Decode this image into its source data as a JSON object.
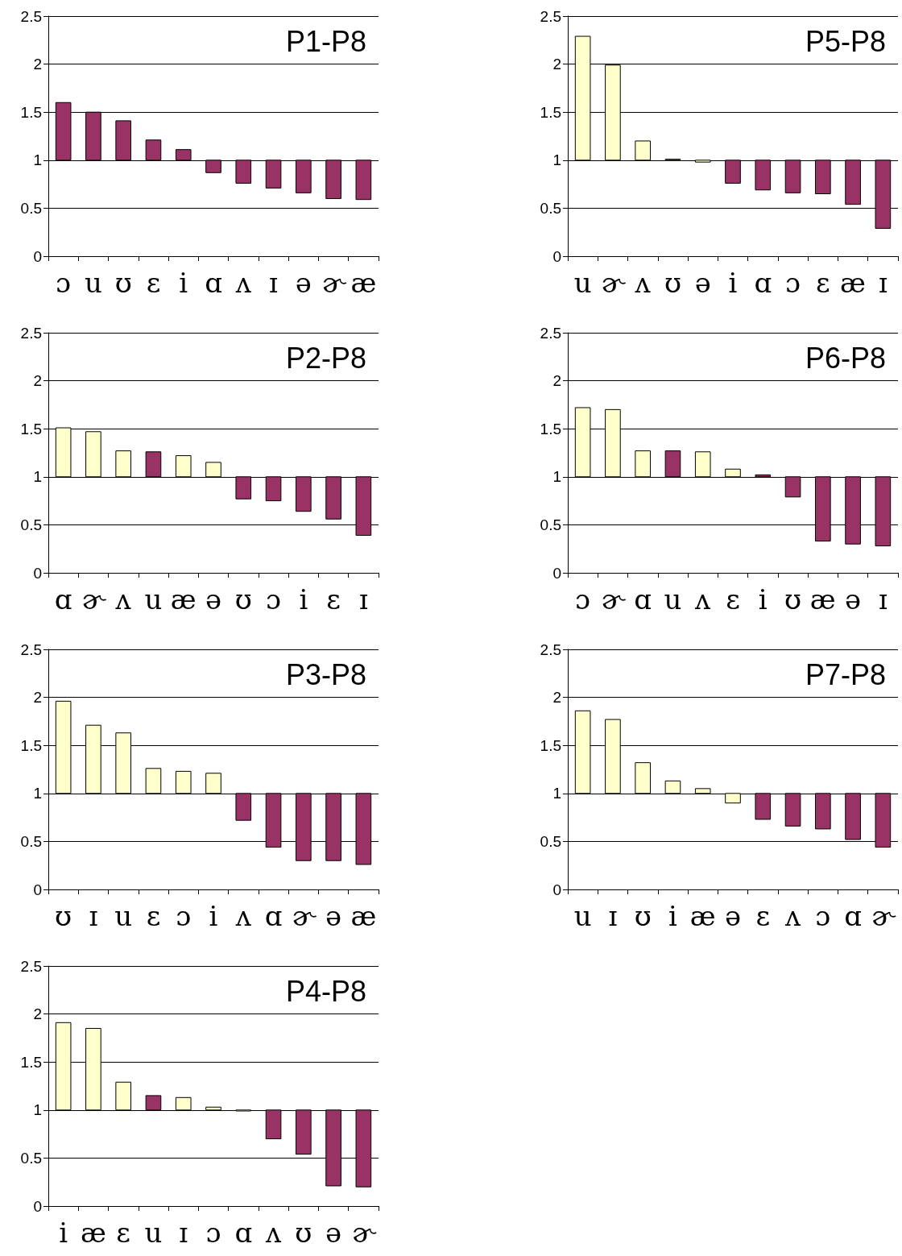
{
  "chart_data": [
    {
      "type": "bar",
      "title": "P1-P8",
      "categories": [
        "ɔ",
        "u",
        "ʊ",
        "ɛ",
        "i",
        "ɑ",
        "ʌ",
        "ɪ",
        "ə",
        "ɚ",
        "æ"
      ],
      "base": [
        1,
        1,
        1,
        1,
        1,
        1,
        1,
        1,
        1,
        1,
        1
      ],
      "values": [
        0.6,
        0.5,
        0.41,
        0.21,
        0.11,
        -0.13,
        -0.24,
        -0.29,
        -0.34,
        -0.4,
        -0.41
      ],
      "colors": [
        "#993366",
        "#993366",
        "#993366",
        "#993366",
        "#993366",
        "#993366",
        "#993366",
        "#993366",
        "#993366",
        "#993366",
        "#993366"
      ],
      "ylim": [
        0,
        2.5
      ],
      "yticks": [
        0,
        0.5,
        1,
        1.5,
        2,
        2.5
      ],
      "grid": "y"
    },
    {
      "type": "bar",
      "title": "P5-P8",
      "categories": [
        "u",
        "ɚ",
        "ʌ",
        "ʊ",
        "ə",
        "i",
        "ɑ",
        "ɔ",
        "ɛ",
        "æ",
        "ɪ"
      ],
      "base": [
        1,
        1,
        1,
        1,
        1,
        1,
        1,
        1,
        1,
        1,
        1
      ],
      "values": [
        1.29,
        0.99,
        0.2,
        0.01,
        -0.02,
        -0.24,
        -0.31,
        -0.34,
        -0.35,
        -0.46,
        -0.71
      ],
      "colors": [
        "#ffffcc",
        "#ffffcc",
        "#ffffcc",
        "#ffffcc",
        "#ffffcc",
        "#993366",
        "#993366",
        "#993366",
        "#993366",
        "#993366",
        "#993366"
      ],
      "ylim": [
        0,
        2.5
      ],
      "yticks": [
        0,
        0.5,
        1,
        1.5,
        2,
        2.5
      ],
      "grid": "y"
    },
    {
      "type": "bar",
      "title": "P2-P8",
      "categories": [
        "ɑ",
        "ɚ",
        "ʌ",
        "u",
        "æ",
        "ə",
        "ʊ",
        "ɔ",
        "i",
        "ɛ",
        "ɪ"
      ],
      "base": [
        1,
        1,
        1,
        1,
        1,
        1,
        1,
        1,
        1,
        1,
        1
      ],
      "values": [
        0.51,
        0.47,
        0.27,
        0.26,
        0.22,
        0.15,
        -0.23,
        -0.25,
        -0.36,
        -0.44,
        -0.61
      ],
      "colors": [
        "#ffffcc",
        "#ffffcc",
        "#ffffcc",
        "#993366",
        "#ffffcc",
        "#ffffcc",
        "#993366",
        "#993366",
        "#993366",
        "#993366",
        "#993366"
      ],
      "ylim": [
        0,
        2.5
      ],
      "yticks": [
        0,
        0.5,
        1,
        1.5,
        2,
        2.5
      ],
      "grid": "y"
    },
    {
      "type": "bar",
      "title": "P6-P8",
      "categories": [
        "ɔ",
        "ɚ",
        "ɑ",
        "u",
        "ʌ",
        "ɛ",
        "i",
        "ʊ",
        "æ",
        "ə",
        "ɪ"
      ],
      "base": [
        1,
        1,
        1,
        1,
        1,
        1,
        1,
        1,
        1,
        1,
        1
      ],
      "values": [
        0.72,
        0.7,
        0.27,
        0.27,
        0.26,
        0.08,
        0.02,
        -0.21,
        -0.67,
        -0.7,
        -0.72
      ],
      "colors": [
        "#ffffcc",
        "#ffffcc",
        "#ffffcc",
        "#993366",
        "#ffffcc",
        "#ffffcc",
        "#993366",
        "#993366",
        "#993366",
        "#993366",
        "#993366"
      ],
      "ylim": [
        0,
        2.5
      ],
      "yticks": [
        0,
        0.5,
        1,
        1.5,
        2,
        2.5
      ],
      "grid": "y"
    },
    {
      "type": "bar",
      "title": "P3-P8",
      "categories": [
        "ʊ",
        "ɪ",
        "u",
        "ɛ",
        "ɔ",
        "i",
        "ʌ",
        "ɑ",
        "ɚ",
        "ə",
        "æ"
      ],
      "base": [
        1,
        1,
        1,
        1,
        1,
        1,
        1,
        1,
        1,
        1,
        1
      ],
      "values": [
        0.96,
        0.71,
        0.63,
        0.26,
        0.23,
        0.21,
        -0.28,
        -0.56,
        -0.7,
        -0.7,
        -0.74
      ],
      "colors": [
        "#ffffcc",
        "#ffffcc",
        "#ffffcc",
        "#ffffcc",
        "#ffffcc",
        "#ffffcc",
        "#993366",
        "#993366",
        "#993366",
        "#993366",
        "#993366"
      ],
      "ylim": [
        0,
        2.5
      ],
      "yticks": [
        0,
        0.5,
        1,
        1.5,
        2,
        2.5
      ],
      "grid": "y"
    },
    {
      "type": "bar",
      "title": "P7-P8",
      "categories": [
        "u",
        "ɪ",
        "ʊ",
        "i",
        "æ",
        "ə",
        "ɛ",
        "ʌ",
        "ɔ",
        "ɑ",
        "ɚ"
      ],
      "base": [
        1,
        1,
        1,
        1,
        1,
        1,
        1,
        1,
        1,
        1,
        1
      ],
      "values": [
        0.86,
        0.77,
        0.32,
        0.13,
        0.05,
        -0.1,
        -0.27,
        -0.34,
        -0.37,
        -0.48,
        -0.56
      ],
      "colors": [
        "#ffffcc",
        "#ffffcc",
        "#ffffcc",
        "#ffffcc",
        "#ffffcc",
        "#ffffcc",
        "#993366",
        "#993366",
        "#993366",
        "#993366",
        "#993366"
      ],
      "ylim": [
        0,
        2.5
      ],
      "yticks": [
        0,
        0.5,
        1,
        1.5,
        2,
        2.5
      ],
      "grid": "y"
    },
    {
      "type": "bar",
      "title": "P4-P8",
      "categories": [
        "i",
        "æ",
        "ɛ",
        "u",
        "ɪ",
        "ɔ",
        "ɑ",
        "ʌ",
        "ʊ",
        "ə",
        "ɚ"
      ],
      "base": [
        1,
        1,
        1,
        1,
        1,
        1,
        1,
        1,
        1,
        1,
        1
      ],
      "values": [
        0.91,
        0.85,
        0.29,
        0.15,
        0.13,
        0.03,
        -0.01,
        -0.3,
        -0.46,
        -0.79,
        -0.8
      ],
      "colors": [
        "#ffffcc",
        "#ffffcc",
        "#ffffcc",
        "#993366",
        "#ffffcc",
        "#ffffcc",
        "#ffffcc",
        "#993366",
        "#993366",
        "#993366",
        "#993366"
      ],
      "ylim": [
        0,
        2.5
      ],
      "yticks": [
        0,
        0.5,
        1,
        1.5,
        2,
        2.5
      ],
      "grid": "y"
    }
  ]
}
